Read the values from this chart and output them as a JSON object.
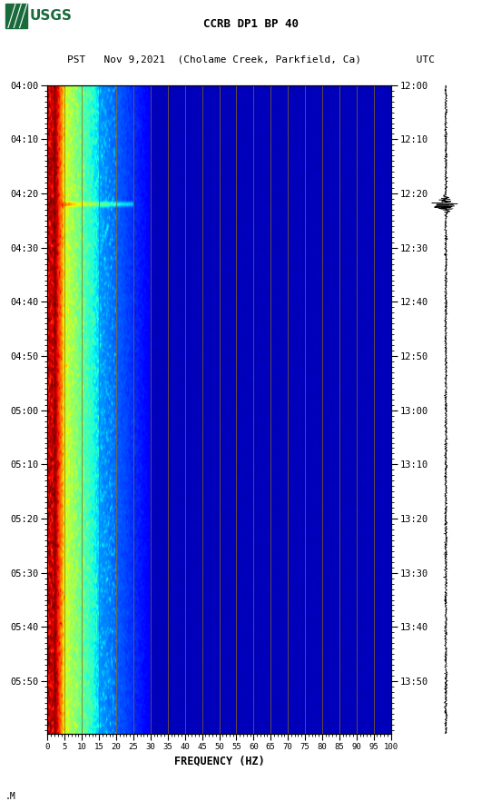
{
  "title_line1": "CCRB DP1 BP 40",
  "title_line2": "PST   Nov 9,2021  (Cholame Creek, Parkfield, Ca)         UTC",
  "xlabel": "FREQUENCY (HZ)",
  "freq_min": 0,
  "freq_max": 100,
  "freq_ticks": [
    0,
    5,
    10,
    15,
    20,
    25,
    30,
    35,
    40,
    45,
    50,
    55,
    60,
    65,
    70,
    75,
    80,
    85,
    90,
    95,
    100
  ],
  "pst_ticks": [
    "04:00",
    "04:10",
    "04:20",
    "04:30",
    "04:40",
    "04:50",
    "05:00",
    "05:10",
    "05:20",
    "05:30",
    "05:40",
    "05:50"
  ],
  "utc_ticks": [
    "12:00",
    "12:10",
    "12:20",
    "12:30",
    "12:40",
    "12:50",
    "13:00",
    "13:10",
    "13:20",
    "13:30",
    "13:40",
    "13:50"
  ],
  "n_time": 480,
  "n_freq": 400,
  "background_color": "#ffffff",
  "vline_color": "#8B6914",
  "vline_positions": [
    5,
    10,
    15,
    20,
    25,
    30,
    35,
    40,
    45,
    50,
    55,
    60,
    65,
    70,
    75,
    80,
    85,
    90,
    95
  ],
  "colormap": "jet",
  "earthquake_time_idx": 88,
  "tick_interval_min": 10,
  "total_minutes": 120
}
